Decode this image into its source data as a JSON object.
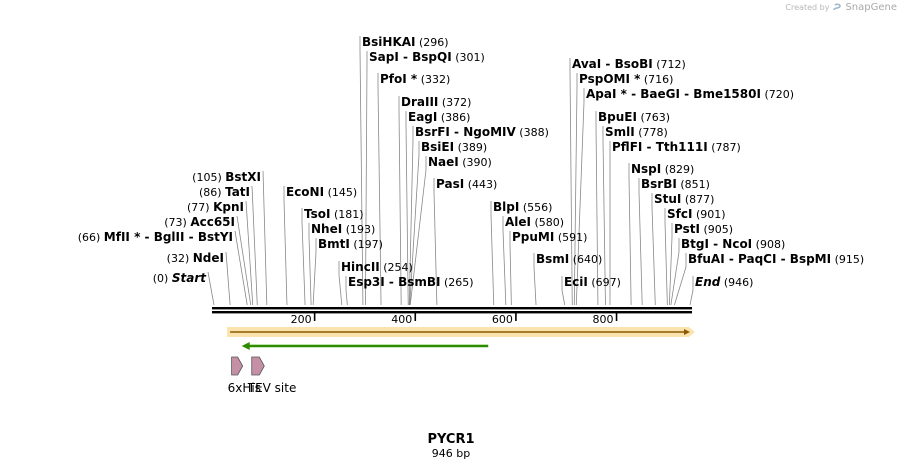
{
  "credit": {
    "prefix": "Created by",
    "brand": "SnapGene"
  },
  "sequence": {
    "name": "PYCR1",
    "length_label": "946 bp",
    "length_bp": 946
  },
  "axis": {
    "ticks": [
      {
        "bp": 200,
        "label": "200"
      },
      {
        "bp": 400,
        "label": "400"
      },
      {
        "bp": 600,
        "label": "600"
      },
      {
        "bp": 800,
        "label": "800"
      }
    ]
  },
  "sites": [
    {
      "names": [
        "Start"
      ],
      "pos_label": "(0)",
      "bp": 0,
      "italic": true,
      "side": "left"
    },
    {
      "names": [
        "NdeI"
      ],
      "pos_label": "(32)",
      "bp": 32,
      "side": "left"
    },
    {
      "names": [
        "MfII *",
        "BglII",
        "BstYI"
      ],
      "pos_label": "(66)",
      "bp": 66,
      "side": "left"
    },
    {
      "names": [
        "Acc65I"
      ],
      "pos_label": "(73)",
      "bp": 73,
      "side": "left"
    },
    {
      "names": [
        "KpnI"
      ],
      "pos_label": "(77)",
      "bp": 77,
      "side": "left"
    },
    {
      "names": [
        "TatI"
      ],
      "pos_label": "(86)",
      "bp": 86,
      "side": "left"
    },
    {
      "names": [
        "BstXI"
      ],
      "pos_label": "(105)",
      "bp": 105,
      "side": "left"
    },
    {
      "names": [
        "EcoNI"
      ],
      "pos_label": "(145)",
      "bp": 145,
      "side": "right"
    },
    {
      "names": [
        "TsoI"
      ],
      "pos_label": "(181)",
      "bp": 181,
      "side": "right"
    },
    {
      "names": [
        "NheI"
      ],
      "pos_label": "(193)",
      "bp": 193,
      "side": "right"
    },
    {
      "names": [
        "BmtI"
      ],
      "pos_label": "(197)",
      "bp": 197,
      "side": "right"
    },
    {
      "names": [
        "HincII"
      ],
      "pos_label": "(254)",
      "bp": 254,
      "side": "right"
    },
    {
      "names": [
        "Esp3I",
        "BsmBI"
      ],
      "pos_label": "(265)",
      "bp": 265,
      "side": "right"
    },
    {
      "names": [
        "BsiHKAI"
      ],
      "pos_label": "(296)",
      "bp": 296,
      "side": "right"
    },
    {
      "names": [
        "SapI",
        "BspQI"
      ],
      "pos_label": "(301)",
      "bp": 301,
      "side": "right"
    },
    {
      "names": [
        "PfoI *"
      ],
      "pos_label": "(332)",
      "bp": 332,
      "side": "right"
    },
    {
      "names": [
        "DraIII"
      ],
      "pos_label": "(372)",
      "bp": 372,
      "side": "right"
    },
    {
      "names": [
        "EagI"
      ],
      "pos_label": "(386)",
      "bp": 386,
      "side": "right"
    },
    {
      "names": [
        "BsrFI",
        "NgoMIV"
      ],
      "pos_label": "(388)",
      "bp": 388,
      "side": "right"
    },
    {
      "names": [
        "BsiEI"
      ],
      "pos_label": "(389)",
      "bp": 389,
      "side": "right"
    },
    {
      "names": [
        "NaeI"
      ],
      "pos_label": "(390)",
      "bp": 390,
      "side": "right"
    },
    {
      "names": [
        "PasI"
      ],
      "pos_label": "(443)",
      "bp": 443,
      "side": "right"
    },
    {
      "names": [
        "BlpI"
      ],
      "pos_label": "(556)",
      "bp": 556,
      "side": "right"
    },
    {
      "names": [
        "AleI"
      ],
      "pos_label": "(580)",
      "bp": 580,
      "side": "right"
    },
    {
      "names": [
        "PpuMI"
      ],
      "pos_label": "(591)",
      "bp": 591,
      "side": "right"
    },
    {
      "names": [
        "BsmI"
      ],
      "pos_label": "(640)",
      "bp": 640,
      "side": "right"
    },
    {
      "names": [
        "EciI"
      ],
      "pos_label": "(697)",
      "bp": 697,
      "side": "right"
    },
    {
      "names": [
        "AvaI",
        "BsoBI"
      ],
      "pos_label": "(712)",
      "bp": 712,
      "side": "right"
    },
    {
      "names": [
        "PspOMI *"
      ],
      "pos_label": "(716)",
      "bp": 716,
      "side": "right"
    },
    {
      "names": [
        "ApaI *",
        "BaeGI",
        "Bme1580I"
      ],
      "pos_label": "(720)",
      "bp": 720,
      "side": "right"
    },
    {
      "names": [
        "BpuEI"
      ],
      "pos_label": "(763)",
      "bp": 763,
      "side": "right"
    },
    {
      "names": [
        "SmlI"
      ],
      "pos_label": "(778)",
      "bp": 778,
      "side": "right"
    },
    {
      "names": [
        "PflFI",
        "Tth111I"
      ],
      "pos_label": "(787)",
      "bp": 787,
      "side": "right"
    },
    {
      "names": [
        "NspI"
      ],
      "pos_label": "(829)",
      "bp": 829,
      "side": "right"
    },
    {
      "names": [
        "BsrBI"
      ],
      "pos_label": "(851)",
      "bp": 851,
      "side": "right"
    },
    {
      "names": [
        "StuI"
      ],
      "pos_label": "(877)",
      "bp": 877,
      "side": "right"
    },
    {
      "names": [
        "SfcI"
      ],
      "pos_label": "(901)",
      "bp": 901,
      "side": "right"
    },
    {
      "names": [
        "PstI"
      ],
      "pos_label": "(905)",
      "bp": 905,
      "side": "right"
    },
    {
      "names": [
        "BtgI",
        "NcoI"
      ],
      "pos_label": "(908)",
      "bp": 908,
      "side": "right"
    },
    {
      "names": [
        "BfuAI",
        "PaqCI",
        "BspMI"
      ],
      "pos_label": "(915)",
      "bp": 915,
      "side": "right"
    },
    {
      "names": [
        "End"
      ],
      "pos_label": "(946)",
      "bp": 946,
      "italic": true,
      "side": "right"
    }
  ],
  "features": [
    {
      "type": "orf",
      "start_bp": 32,
      "end_bp": 946,
      "direction": "forward",
      "color": "#f0c24b",
      "stroke": "#8b5a00"
    },
    {
      "type": "primer",
      "start_bp": 55,
      "end_bp": 545,
      "direction": "reverse",
      "color": "#2e8b00"
    },
    {
      "type": "tag",
      "label": "6xHis",
      "start_bp": 35,
      "end_bp": 53,
      "color": "#c58fa5"
    },
    {
      "type": "tag",
      "label": "TEV site",
      "start_bp": 75,
      "end_bp": 96,
      "color": "#c58fa5"
    }
  ],
  "colors": {
    "line": "#000000",
    "site_line": "#888888"
  }
}
